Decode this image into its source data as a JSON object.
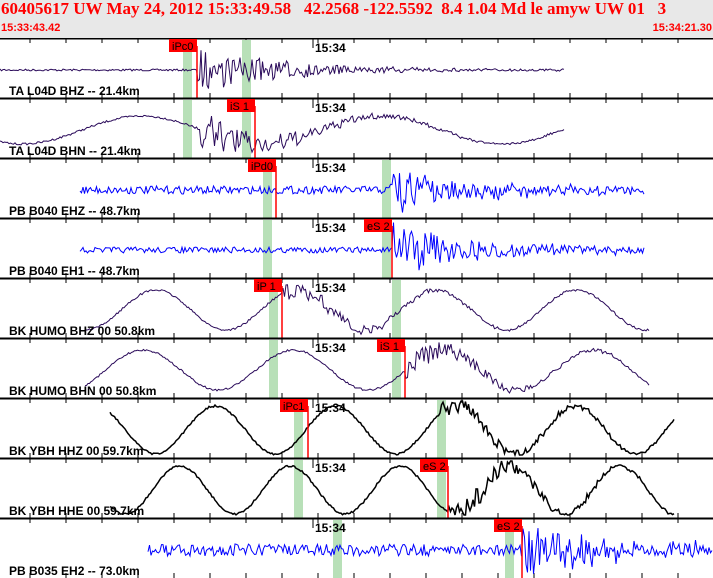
{
  "header": {
    "title": "60405617 UW May 24, 2012 15:33:49.58   42.2568 -122.5592  8.4 1.04 Md le amyw UW 01   3",
    "start_time": "15:33:43.42",
    "end_time": "15:34:21.30"
  },
  "minute_label": "15:34",
  "colors": {
    "pick": "#ff0000",
    "window": "#b8e0b8",
    "bh": "#2a0a5a",
    "eh": "#0000ff",
    "hh": "#000000"
  },
  "channels": [
    {
      "label": "TA L04D BHZ -- 21.4km",
      "pick": "iPc0",
      "kind": "bh"
    },
    {
      "label": "TA L04D BHN -- 21.4km",
      "pick": "iS 1",
      "kind": "bh"
    },
    {
      "label": "PB B040 EHZ -- 48.7km",
      "pick": "iPd0",
      "kind": "eh"
    },
    {
      "label": "PB B040 EH1 -- 48.7km",
      "pick": "eS 2",
      "kind": "eh"
    },
    {
      "label": "BK HUMO BHZ 00 50.8km",
      "pick": "iP 1",
      "kind": "bh"
    },
    {
      "label": "BK HUMO BHN 00 50.8km",
      "pick": "iS 1",
      "kind": "bh"
    },
    {
      "label": "BK YBH HHZ 00 59.7km",
      "pick": "iPc1",
      "kind": "hh"
    },
    {
      "label": "BK YBH HHE 00 59.7km",
      "pick": "eS 2",
      "kind": "hh"
    },
    {
      "label": "PB B035 EH2 -- 73.0km",
      "pick": "eS 2",
      "kind": "eh"
    }
  ]
}
